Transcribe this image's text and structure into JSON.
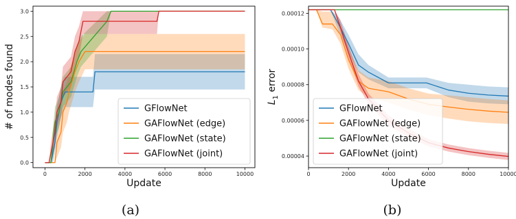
{
  "chart_data": [
    {
      "type": "line",
      "caption": "(a)",
      "xlabel": "Update",
      "ylabel": "# of modes found",
      "xlim": [
        -600,
        10500
      ],
      "ylim": [
        -0.1,
        3.1
      ],
      "xticks": [
        0,
        2000,
        4000,
        6000,
        8000,
        10000
      ],
      "xtick_labels": [
        "0",
        "2000",
        "4000",
        "6000",
        "8000",
        "10000"
      ],
      "yticks": [
        0,
        0.5,
        1,
        1.5,
        2,
        2.5,
        3
      ],
      "ytick_labels": [
        "0.0",
        "0.5",
        "1.0",
        "1.5",
        "2.0",
        "2.5",
        "3.0"
      ],
      "grid": false,
      "legend_position": "bottom-right",
      "series": [
        {
          "name": "GFlowNet",
          "color": "#1f77b4",
          "points": [
            [
              0,
              0
            ],
            [
              300,
              0
            ],
            [
              400,
              0.2
            ],
            [
              500,
              0.4
            ],
            [
              600,
              0.8
            ],
            [
              700,
              1.0
            ],
            [
              800,
              1.2
            ],
            [
              1000,
              1.4
            ],
            [
              2400,
              1.4
            ],
            [
              2500,
              1.8
            ],
            [
              10000,
              1.8
            ]
          ],
          "band": [
            [
              0,
              0,
              0
            ],
            [
              300,
              0,
              0
            ],
            [
              400,
              0,
              0.4
            ],
            [
              500,
              0.2,
              0.7
            ],
            [
              600,
              0.5,
              1.1
            ],
            [
              700,
              0.7,
              1.3
            ],
            [
              800,
              0.9,
              1.5
            ],
            [
              1000,
              1.1,
              1.7
            ],
            [
              2400,
              1.1,
              1.7
            ],
            [
              2500,
              1.45,
              2.15
            ],
            [
              10000,
              1.45,
              2.15
            ]
          ]
        },
        {
          "name": "GAFlowNet (edge)",
          "color": "#ff7f0e",
          "points": [
            [
              0,
              0
            ],
            [
              500,
              0
            ],
            [
              600,
              0.4
            ],
            [
              800,
              0.6
            ],
            [
              900,
              1.0
            ],
            [
              1100,
              1.2
            ],
            [
              1200,
              1.4
            ],
            [
              1500,
              1.8
            ],
            [
              1700,
              2.0
            ],
            [
              2000,
              2.2
            ],
            [
              10000,
              2.2
            ]
          ],
          "band": [
            [
              0,
              0,
              0
            ],
            [
              500,
              0,
              0
            ],
            [
              600,
              0.1,
              0.7
            ],
            [
              800,
              0.3,
              0.9
            ],
            [
              900,
              0.6,
              1.4
            ],
            [
              1100,
              0.8,
              1.6
            ],
            [
              1200,
              1.0,
              1.8
            ],
            [
              1500,
              1.4,
              2.2
            ],
            [
              1700,
              1.6,
              2.4
            ],
            [
              2000,
              1.85,
              2.55
            ],
            [
              10000,
              1.85,
              2.55
            ]
          ]
        },
        {
          "name": "GAFlowNet (state)",
          "color": "#2ca02c",
          "points": [
            [
              0,
              0
            ],
            [
              300,
              0
            ],
            [
              400,
              0.4
            ],
            [
              500,
              0.8
            ],
            [
              700,
              1.0
            ],
            [
              900,
              1.4
            ],
            [
              1300,
              1.6
            ],
            [
              1600,
              2.0
            ],
            [
              1800,
              2.2
            ],
            [
              3100,
              2.8
            ],
            [
              3300,
              3.0
            ],
            [
              10000,
              3.0
            ]
          ],
          "band": [
            [
              0,
              0,
              0
            ],
            [
              300,
              0,
              0
            ],
            [
              400,
              0.1,
              0.7
            ],
            [
              500,
              0.5,
              1.1
            ],
            [
              700,
              0.7,
              1.3
            ],
            [
              900,
              1.1,
              1.7
            ],
            [
              1300,
              1.3,
              1.9
            ],
            [
              1600,
              1.7,
              2.3
            ],
            [
              1800,
              1.9,
              2.5
            ],
            [
              3100,
              2.5,
              3.0
            ],
            [
              3300,
              3.0,
              3.0
            ],
            [
              10000,
              3.0,
              3.0
            ]
          ]
        },
        {
          "name": "GAFlowNet (joint)",
          "color": "#d62728",
          "points": [
            [
              0,
              0
            ],
            [
              200,
              0
            ],
            [
              300,
              0.2
            ],
            [
              500,
              0.6
            ],
            [
              600,
              1.0
            ],
            [
              800,
              1.2
            ],
            [
              900,
              1.6
            ],
            [
              1300,
              1.8
            ],
            [
              1500,
              2.2
            ],
            [
              1700,
              2.4
            ],
            [
              1900,
              2.8
            ],
            [
              5600,
              2.8
            ],
            [
              5700,
              3.0
            ],
            [
              10000,
              3.0
            ]
          ],
          "band": [
            [
              0,
              0,
              0
            ],
            [
              200,
              0,
              0
            ],
            [
              300,
              0,
              0.4
            ],
            [
              500,
              0.3,
              0.9
            ],
            [
              600,
              0.7,
              1.3
            ],
            [
              800,
              0.9,
              1.5
            ],
            [
              900,
              1.3,
              1.9
            ],
            [
              1300,
              1.5,
              2.1
            ],
            [
              1500,
              1.9,
              2.5
            ],
            [
              1700,
              2.1,
              2.7
            ],
            [
              1900,
              2.55,
              3.0
            ],
            [
              5600,
              2.55,
              3.0
            ],
            [
              5700,
              3.0,
              3.0
            ],
            [
              10000,
              3.0,
              3.0
            ]
          ]
        }
      ]
    },
    {
      "type": "line",
      "caption": "(b)",
      "xlabel": "Update",
      "ylabel": "L1 error",
      "ylabel_main": "L",
      "ylabel_sub": "1",
      "ylabel_rest": " error",
      "xlim": [
        0,
        10000
      ],
      "ylim": [
        3.35e-05,
        0.000124
      ],
      "xticks": [
        0,
        2000,
        4000,
        6000,
        8000,
        10000
      ],
      "xtick_labels": [
        "0",
        "2000",
        "4000",
        "6000",
        "8000",
        "10000"
      ],
      "yticks": [
        4e-05,
        6e-05,
        8e-05,
        0.0001,
        0.00012
      ],
      "ytick_labels": [
        "0.00004",
        "0.00006",
        "0.00008",
        "0.00010",
        "0.00012"
      ],
      "grid": false,
      "legend_position": "bottom-left",
      "series": [
        {
          "name": "GFlowNet",
          "color": "#1f77b4",
          "points": [
            [
              0,
              0.000122
            ],
            [
              1100,
              0.000122
            ],
            [
              1500,
              0.000114
            ],
            [
              2000,
              0.000103
            ],
            [
              2500,
              9.1e-05
            ],
            [
              3000,
              8.7e-05
            ],
            [
              4000,
              8.1e-05
            ],
            [
              5000,
              8.1e-05
            ],
            [
              5900,
              8.1e-05
            ],
            [
              7000,
              7.7e-05
            ],
            [
              8000,
              7.52e-05
            ],
            [
              9000,
              7.42e-05
            ],
            [
              10000,
              7.36e-05
            ]
          ],
          "band": [
            [
              0,
              0.000122,
              0.000122
            ],
            [
              1100,
              0.000122,
              0.000122
            ],
            [
              1500,
              0.00011,
              0.000118
            ],
            [
              2000,
              9.8e-05,
              0.000108
            ],
            [
              2500,
              8.7e-05,
              9.7e-05
            ],
            [
              3000,
              8.3e-05,
              9.1e-05
            ],
            [
              4000,
              7.8e-05,
              8.4e-05
            ],
            [
              5000,
              7.8e-05,
              8.4e-05
            ],
            [
              5900,
              7.8e-05,
              8.4e-05
            ],
            [
              7000,
              7.3e-05,
              8.1e-05
            ],
            [
              8000,
              7.05e-05,
              8e-05
            ],
            [
              9000,
              6.95e-05,
              7.9e-05
            ],
            [
              10000,
              6.9e-05,
              7.85e-05
            ]
          ]
        },
        {
          "name": "GAFlowNet (edge)",
          "color": "#ff7f0e",
          "points": [
            [
              0,
              0.000122
            ],
            [
              400,
              0.000122
            ],
            [
              700,
              0.000114
            ],
            [
              1200,
              0.000114
            ],
            [
              1600,
              0.000108
            ],
            [
              2000,
              9.4e-05
            ],
            [
              2500,
              8.2e-05
            ],
            [
              3000,
              7.8e-05
            ],
            [
              4000,
              7.6e-05
            ],
            [
              5000,
              7.2e-05
            ],
            [
              6000,
              6.9e-05
            ],
            [
              7000,
              6.75e-05
            ],
            [
              8000,
              6.62e-05
            ],
            [
              9000,
              6.52e-05
            ],
            [
              10000,
              6.45e-05
            ]
          ],
          "band": [
            [
              0,
              0.000122,
              0.000122
            ],
            [
              400,
              0.000122,
              0.000122
            ],
            [
              700,
              0.000112,
              0.000121
            ],
            [
              1200,
              0.000111,
              0.000121
            ],
            [
              1600,
              0.000103,
              0.000114
            ],
            [
              2000,
              8.9e-05,
              0.000101
            ],
            [
              2500,
              7.7e-05,
              8.8e-05
            ],
            [
              3000,
              7.3e-05,
              8.4e-05
            ],
            [
              4000,
              7e-05,
              8.2e-05
            ],
            [
              5000,
              6.6e-05,
              7.8e-05
            ],
            [
              6000,
              6.3e-05,
              7.5e-05
            ],
            [
              7000,
              6.1e-05,
              7.4e-05
            ],
            [
              8000,
              5.95e-05,
              7.3e-05
            ],
            [
              9000,
              5.85e-05,
              7.2e-05
            ],
            [
              10000,
              5.8e-05,
              7.12e-05
            ]
          ]
        },
        {
          "name": "GAFlowNet (state)",
          "color": "#2ca02c",
          "points": [
            [
              0,
              0.000122
            ],
            [
              10000,
              0.000122
            ]
          ],
          "band": [
            [
              0,
              0.000122,
              0.000122
            ],
            [
              10000,
              0.000122,
              0.000122
            ]
          ]
        },
        {
          "name": "GAFlowNet (joint)",
          "color": "#d62728",
          "points": [
            [
              0,
              0.000122
            ],
            [
              1300,
              0.000122
            ],
            [
              1600,
              0.000112
            ],
            [
              2000,
              9.8e-05
            ],
            [
              2500,
              8.2e-05
            ],
            [
              3000,
              7.2e-05
            ],
            [
              4000,
              6e-05
            ],
            [
              5000,
              5.3e-05
            ],
            [
              6000,
              4.75e-05
            ],
            [
              7000,
              4.45e-05
            ],
            [
              8000,
              4.25e-05
            ],
            [
              9000,
              4.1e-05
            ],
            [
              10000,
              3.98e-05
            ]
          ],
          "band": [
            [
              0,
              0.000122,
              0.000122
            ],
            [
              1300,
              0.000122,
              0.000122
            ],
            [
              1600,
              0.00011,
              0.000116
            ],
            [
              2000,
              9.5e-05,
              0.000102
            ],
            [
              2500,
              7.9e-05,
              8.6e-05
            ],
            [
              3000,
              6.9e-05,
              7.5e-05
            ],
            [
              4000,
              5.7e-05,
              6.3e-05
            ],
            [
              5000,
              5.05e-05,
              5.55e-05
            ],
            [
              6000,
              4.55e-05,
              4.95e-05
            ],
            [
              7000,
              4.25e-05,
              4.65e-05
            ],
            [
              8000,
              4.05e-05,
              4.45e-05
            ],
            [
              9000,
              3.9e-05,
              4.3e-05
            ],
            [
              10000,
              3.78e-05,
              4.18e-05
            ]
          ]
        }
      ]
    }
  ]
}
